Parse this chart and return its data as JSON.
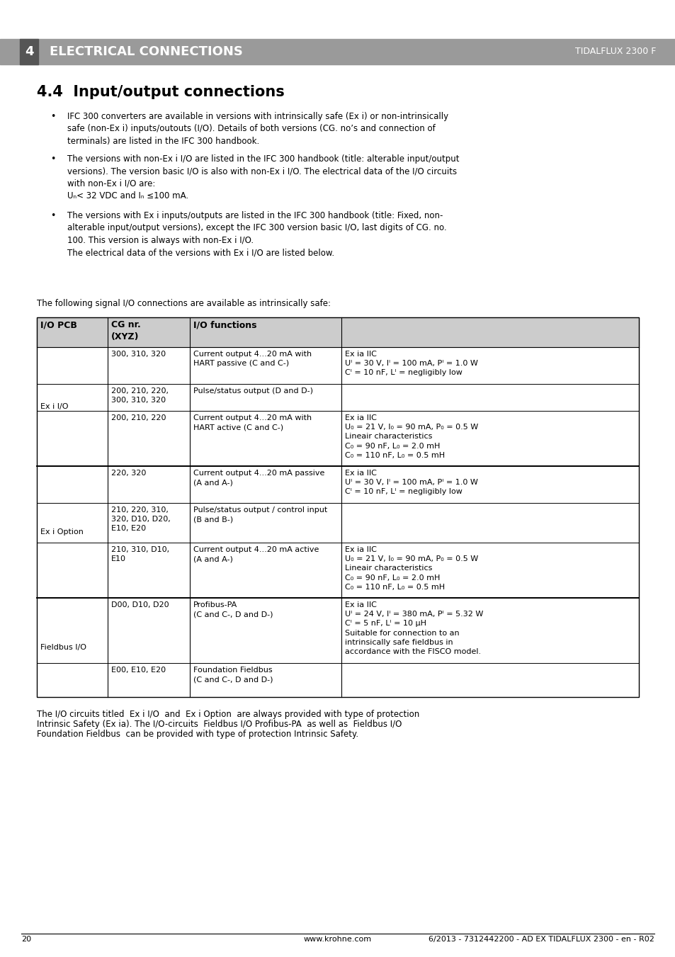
{
  "page_bg": "#ffffff",
  "header_bg": "#999999",
  "chapter_number": "4",
  "chapter_title": "ELECTRICAL CONNECTIONS",
  "chapter_right": "TIDALFLUX 2300 F",
  "section_title": "4.4  Input/output connections",
  "bullet1": "IFC 300 converters are available in versions with intrinsically safe (Ex i) or non-intrinsically\nsafe (non-Ex i) inputs/outouts (I/O). Details of both versions (CG. no’s and connection of\nterminals) are listed in the IFC 300 handbook.",
  "bullet2": "The versions with non-Ex i I/O are listed in the IFC 300 handbook (title: alterable input/output\nversions). The version basic I/O is also with non-Ex i I/O. The electrical data of the I/O circuits\nwith non-Ex i I/O are:\nUₙ< 32 VDC and Iₙ ≤100 mA.",
  "bullet3": "The versions with Ex i inputs/outputs are listed in the IFC 300 handbook (title: Fixed, non-\nalterable input/output versions), except the IFC 300 version basic I/O, last digits of CG. no.\n100. This version is always with non-Ex i I/O.\nThe electrical data of the versions with Ex i I/O are listed below.",
  "intro_text": "The following signal I/O connections are available as intrinsically safe:",
  "footer_text1": "The I/O circuits titled  Ex i I/O  and  Ex i Option  are always provided with type of protection",
  "footer_text2": "Intrinsic Safety (Ex ia). The I/O-circuits  Fieldbus I/O Profibus-PA  as well as  Fieldbus I/O",
  "footer_text3": "Foundation Fieldbus  can be provided with type of protection Intrinsic Safety.",
  "page_number": "20",
  "footer_center": "www.krohne.com",
  "footer_right": "6/2013 - 7312442200 - AD EX TIDALFLUX 2300 - en - R02"
}
